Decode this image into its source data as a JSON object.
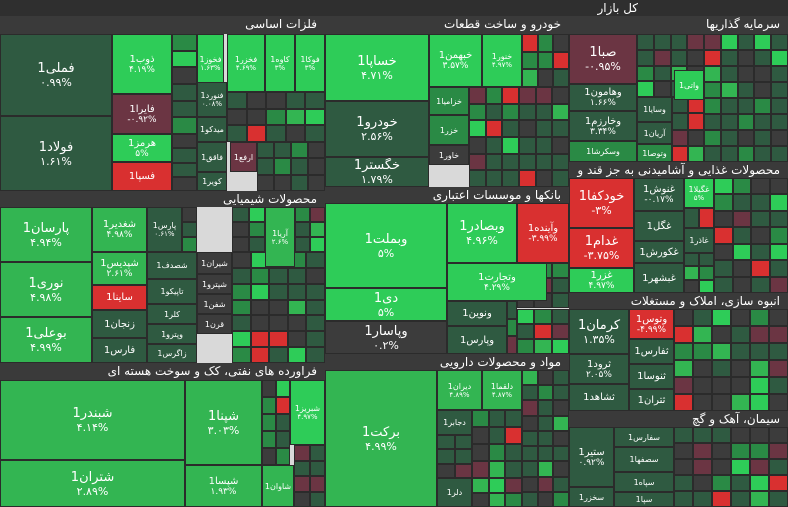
{
  "colors": {
    "strong_green": "#2ecc58",
    "green": "#33b552",
    "mid_green": "#2a8a45",
    "dark_green": "#2f5a41",
    "neutral": "#3c3c3c",
    "red": "#d93030",
    "dark_red": "#6b3543",
    "header_bg": "#3a3a3a"
  },
  "title": "کل بازار",
  "sectors": [
    {
      "name": "فلزات اساسی"
    },
    {
      "name": "خودرو و ساخت قطعات"
    },
    {
      "name": "سرمایه گذاریها"
    },
    {
      "name": "محصولات شیمیایی"
    },
    {
      "name": "بانکها و موسسات اعتباری"
    },
    {
      "name": "محصولات غذایی و آشامیدنی به جز قند و"
    },
    {
      "name": "انبوه سازی، املاک و مستغلات"
    },
    {
      "name": "فراورده های نفتی، کک و سوخت هسته ای"
    },
    {
      "name": "مواد و محصولات دارویی"
    },
    {
      "name": "سیمان، آهک و گچ"
    }
  ],
  "tiles": [
    {
      "symbol": "فملی1",
      "change": "۰.۹۹%"
    },
    {
      "symbol": "فولاد1",
      "change": "۱.۶۱%"
    },
    {
      "symbol": "ذوب1",
      "change": "۴.۱۹%"
    },
    {
      "symbol": "فایرا1",
      "change": "-۰.۹۲%"
    },
    {
      "symbol": "هرمز1",
      "change": "۵%"
    },
    {
      "symbol": "فسپا1",
      "change": ""
    },
    {
      "symbol": "فخوز1",
      "change": "۱.۶۳%"
    },
    {
      "symbol": "فخزر1",
      "change": "۴.۶۹%"
    },
    {
      "symbol": "کاوه1",
      "change": "۳%"
    },
    {
      "symbol": "فوکا1",
      "change": "۳%"
    },
    {
      "symbol": "فنورد1",
      "change": "۰.۰۸%"
    },
    {
      "symbol": "میدکو1",
      "change": ""
    },
    {
      "symbol": "فاقق1",
      "change": ""
    },
    {
      "symbol": "ارفع1",
      "change": ""
    },
    {
      "symbol": "کویر1",
      "change": ""
    },
    {
      "symbol": "خساپا1",
      "change": "۴.۷۱%"
    },
    {
      "symbol": "خودرو1",
      "change": "۲.۵۶%"
    },
    {
      "symbol": "خگستر1",
      "change": "۱.۷۹%"
    },
    {
      "symbol": "خبهمن1",
      "change": "۳.۵۷%"
    },
    {
      "symbol": "خنور1",
      "change": "۴.۹۷%"
    },
    {
      "symbol": "خزامیا1",
      "change": ""
    },
    {
      "symbol": "خزر1",
      "change": ""
    },
    {
      "symbol": "خاور1",
      "change": ""
    },
    {
      "symbol": "صبا1",
      "change": "-۰.۹۵%"
    },
    {
      "symbol": "وهامون1",
      "change": "۱.۶۶%"
    },
    {
      "symbol": "وخارزم1",
      "change": "۳.۳۴%"
    },
    {
      "symbol": "وسکرشا1",
      "change": ""
    },
    {
      "symbol": "واتی1",
      "change": ""
    },
    {
      "symbol": "وسایا1",
      "change": ""
    },
    {
      "symbol": "آریان1",
      "change": ""
    },
    {
      "symbol": "وتوصا1",
      "change": ""
    },
    {
      "symbol": "پارسان1",
      "change": "۴.۹۴%"
    },
    {
      "symbol": "نوری1",
      "change": "۴.۹۸%"
    },
    {
      "symbol": "بوعلی1",
      "change": "۴.۹۹%"
    },
    {
      "symbol": "شغدیر1",
      "change": "۴.۹۸%"
    },
    {
      "symbol": "شپدیس1",
      "change": "۲.۶۱%"
    },
    {
      "symbol": "ساینا1",
      "change": ""
    },
    {
      "symbol": "زنجان1",
      "change": ""
    },
    {
      "symbol": "فارس1",
      "change": ""
    },
    {
      "symbol": "پارس1",
      "change": "۰.۶۱%"
    },
    {
      "symbol": "شصدف1",
      "change": ""
    },
    {
      "symbol": "تاپیکو1",
      "change": ""
    },
    {
      "symbol": "کلر1",
      "change": ""
    },
    {
      "symbol": "وپترو1",
      "change": ""
    },
    {
      "symbol": "زاگرس1",
      "change": ""
    },
    {
      "symbol": "شیران1",
      "change": ""
    },
    {
      "symbol": "شپترو1",
      "change": ""
    },
    {
      "symbol": "شفن1",
      "change": ""
    },
    {
      "symbol": "قرن1",
      "change": ""
    },
    {
      "symbol": "آریا1",
      "change": "۲.۶%"
    },
    {
      "symbol": "وبملت1",
      "change": "۵%"
    },
    {
      "symbol": "دی1",
      "change": "۵%"
    },
    {
      "symbol": "وپاسار1",
      "change": "۰.۲%"
    },
    {
      "symbol": "وبصادر1",
      "change": "۴.۹۶%"
    },
    {
      "symbol": "وتجارت1",
      "change": "۴.۲۹%"
    },
    {
      "symbol": "ونوین1",
      "change": ""
    },
    {
      "symbol": "وپارس1",
      "change": ""
    },
    {
      "symbol": "وآینده1",
      "change": "-۳.۹۹%"
    },
    {
      "symbol": "خودکفا1",
      "change": "-۳%"
    },
    {
      "symbol": "غدام1",
      "change": "-۳.۷۵%"
    },
    {
      "symbol": "غزر1",
      "change": "۴.۹۷%"
    },
    {
      "symbol": "غنوش1",
      "change": "-۰.۱۷%"
    },
    {
      "symbol": "غگل1",
      "change": ""
    },
    {
      "symbol": "غکورش1",
      "change": ""
    },
    {
      "symbol": "غبشهر1",
      "change": ""
    },
    {
      "symbol": "غگیلا1",
      "change": "۵%"
    },
    {
      "symbol": "غاذر1",
      "change": ""
    },
    {
      "symbol": "کرمان1",
      "change": "۱.۳۵%"
    },
    {
      "symbol": "ثرود1",
      "change": "۲.۰۵%"
    },
    {
      "symbol": "ثشاهد1",
      "change": ""
    },
    {
      "symbol": "وتوس1",
      "change": "-۴.۹۹%"
    },
    {
      "symbol": "ثفارس1",
      "change": ""
    },
    {
      "symbol": "ثنوسا1",
      "change": ""
    },
    {
      "symbol": "ثتران1",
      "change": ""
    },
    {
      "symbol": "شبندر1",
      "change": "۴.۱۴%"
    },
    {
      "symbol": "شتران1",
      "change": "۲.۸۹%"
    },
    {
      "symbol": "شپنا1",
      "change": "۳.۰۳%"
    },
    {
      "symbol": "شپسا1",
      "change": "۱.۹۳%"
    },
    {
      "symbol": "شبریز1",
      "change": "۴.۹۷%"
    },
    {
      "symbol": "شاوان1",
      "change": ""
    },
    {
      "symbol": "برکت1",
      "change": "۴.۹۹%"
    },
    {
      "symbol": "دیران1",
      "change": "۴.۸۹%"
    },
    {
      "symbol": "دلقما1",
      "change": "۴.۸۷%"
    },
    {
      "symbol": "دجابر1",
      "change": ""
    },
    {
      "symbol": "دلر1",
      "change": ""
    },
    {
      "symbol": "ستیر1",
      "change": "۰.۹۲%"
    },
    {
      "symbol": "سخزر1",
      "change": ""
    },
    {
      "symbol": "سفارس1",
      "change": ""
    },
    {
      "symbol": "سصفها1",
      "change": ""
    },
    {
      "symbol": "سپاه1",
      "change": ""
    },
    {
      "symbol": "سپا1",
      "change": ""
    }
  ]
}
